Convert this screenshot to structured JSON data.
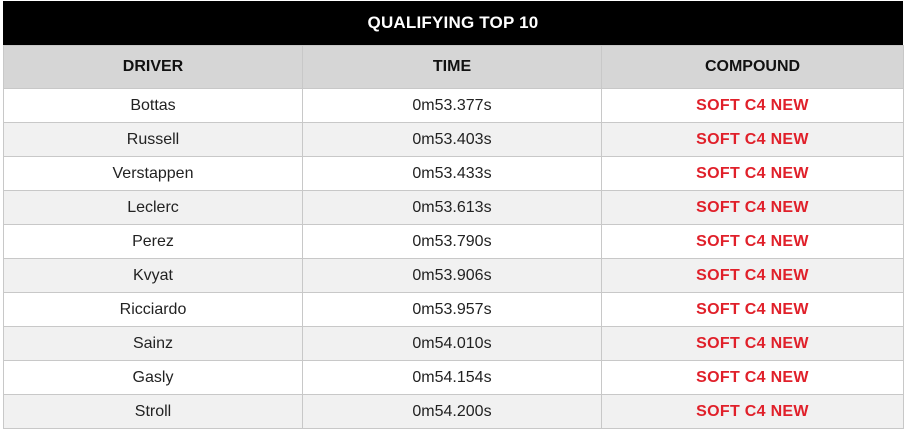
{
  "title": "QUALIFYING TOP 10",
  "columns": {
    "driver": "DRIVER",
    "time": "TIME",
    "compound": "COMPOUND"
  },
  "colors": {
    "header_bg": "#000000",
    "column_header_bg": "#d6d6d6",
    "compound_text": "#e0202a"
  },
  "rows": [
    {
      "driver": "Bottas",
      "time": "0m53.377s",
      "compound": "SOFT C4 NEW"
    },
    {
      "driver": "Russell",
      "time": "0m53.403s",
      "compound": "SOFT C4 NEW"
    },
    {
      "driver": "Verstappen",
      "time": "0m53.433s",
      "compound": "SOFT C4 NEW"
    },
    {
      "driver": "Leclerc",
      "time": "0m53.613s",
      "compound": "SOFT C4 NEW"
    },
    {
      "driver": "Perez",
      "time": "0m53.790s",
      "compound": "SOFT C4 NEW"
    },
    {
      "driver": "Kvyat",
      "time": "0m53.906s",
      "compound": "SOFT C4 NEW"
    },
    {
      "driver": "Ricciardo",
      "time": "0m53.957s",
      "compound": "SOFT C4 NEW"
    },
    {
      "driver": "Sainz",
      "time": "0m54.010s",
      "compound": "SOFT C4 NEW"
    },
    {
      "driver": "Gasly",
      "time": "0m54.154s",
      "compound": "SOFT C4 NEW"
    },
    {
      "driver": "Stroll",
      "time": "0m54.200s",
      "compound": "SOFT C4 NEW"
    }
  ]
}
